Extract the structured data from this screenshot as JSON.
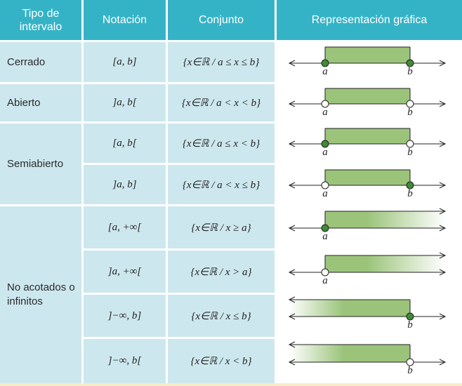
{
  "header": {
    "col1": "Tipo de intervalo",
    "col2": "Notación",
    "col3": "Conjunto",
    "col4": "Representación gráfica"
  },
  "groups": [
    {
      "label": "Cerrado"
    },
    {
      "label": "Abierto"
    },
    {
      "label": "Semiabierto"
    },
    {
      "label": "No acotados o infinitos"
    }
  ],
  "rows": [
    {
      "notation": "[a, b]",
      "set": "{x∈ℝ / a ≤ x ≤ b}",
      "graph": {
        "left": "closed",
        "right": "closed",
        "start_label": "a",
        "end_label": "b"
      }
    },
    {
      "notation": "]a, b[",
      "set": "{x∈ℝ / a < x < b}",
      "graph": {
        "left": "open",
        "right": "open",
        "start_label": "a",
        "end_label": "b"
      }
    },
    {
      "notation": "[a, b[",
      "set": "{x∈ℝ / a ≤ x < b}",
      "graph": {
        "left": "closed",
        "right": "open",
        "start_label": "a",
        "end_label": "b"
      }
    },
    {
      "notation": "]a, b]",
      "set": "{x∈ℝ / a < x ≤ b}",
      "graph": {
        "left": "open",
        "right": "closed",
        "start_label": "a",
        "end_label": "b"
      }
    },
    {
      "notation": "[a, +∞[",
      "set": "{x∈ℝ / x ≥ a}",
      "graph": {
        "left": "closed",
        "right": "inf",
        "start_label": "a",
        "end_label": ""
      }
    },
    {
      "notation": "]a, +∞[",
      "set": "{x∈ℝ / x > a}",
      "graph": {
        "left": "open",
        "right": "inf",
        "start_label": "a",
        "end_label": ""
      }
    },
    {
      "notation": "]−∞, b]",
      "set": "{x∈ℝ / x ≤ b}",
      "graph": {
        "left": "inf",
        "right": "closed",
        "start_label": "",
        "end_label": "b"
      }
    },
    {
      "notation": "]−∞, b[",
      "set": "{x∈ℝ / x < b}",
      "graph": {
        "left": "inf",
        "right": "open",
        "start_label": "",
        "end_label": "b"
      }
    }
  ],
  "colors": {
    "header_bg": "#35b3c6",
    "cell_bg": "#cde7ee",
    "fill_green": "#9bc47a",
    "dot_green": "#3f8b35",
    "line": "#222222"
  }
}
